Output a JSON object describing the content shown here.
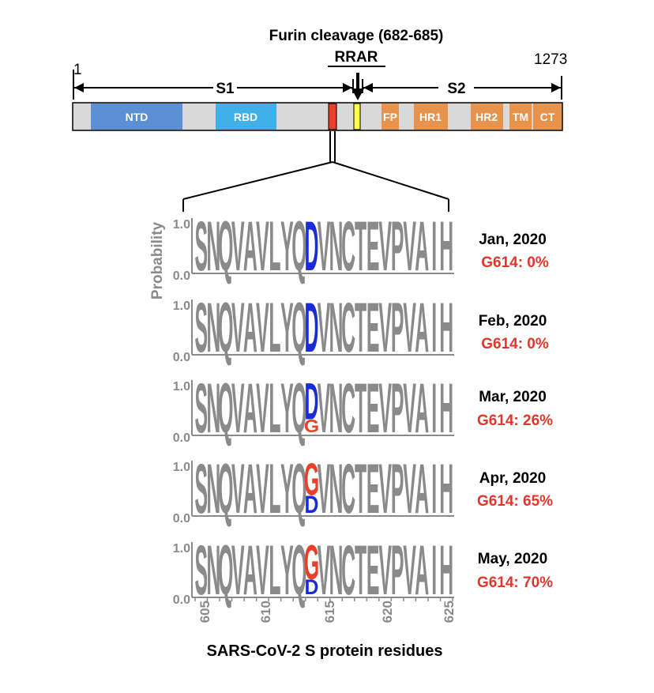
{
  "diagram": {
    "furin_title": "Furin cleavage (682-685)",
    "furin_motif": "RRAR",
    "start_residue": "1",
    "end_residue": "1273",
    "subunit_s1": "S1",
    "subunit_s2": "S2",
    "domains": [
      {
        "name": "NTD",
        "color": "#5b8fd6"
      },
      {
        "name": "RBD",
        "color": "#3fb0ea"
      },
      {
        "name": "FP",
        "color": "#e8934d"
      },
      {
        "name": "HR1",
        "color": "#e8934d"
      },
      {
        "name": "HR2",
        "color": "#e8934d"
      },
      {
        "name": "TM",
        "color": "#e8934d"
      },
      {
        "name": "CT",
        "color": "#e8934d"
      }
    ],
    "colors": {
      "bar": "#d9d9d9",
      "marker_red": "#e8402a",
      "marker_yellow": "#ffff44"
    }
  },
  "logos": {
    "ylabel": "Probability",
    "y_top": "1.0",
    "y_bottom": "0.0",
    "xlabel": "SARS-CoV-2 S protein residues",
    "x_ticks": [
      "605",
      "610",
      "615",
      "620",
      "625"
    ],
    "residues_before": "SNQVAVLYQ",
    "residues_after": "VNCTEVPVAIH",
    "colors": {
      "gray": "#8a8a8a",
      "D": "#1a2bd8",
      "G": "#e8402a",
      "label_red": "#e0362c"
    },
    "months": [
      {
        "date": "Jan, 2020",
        "g614_label": "G614: 0%",
        "g614": 0.0
      },
      {
        "date": "Feb, 2020",
        "g614_label": "G614: 0%",
        "g614": 0.0
      },
      {
        "date": "Mar, 2020",
        "g614_label": "G614: 26%",
        "g614": 0.26
      },
      {
        "date": "Apr, 2020",
        "g614_label": "G614: 65%",
        "g614": 0.65
      },
      {
        "date": "May, 2020",
        "g614_label": "G614: 70%",
        "g614": 0.7
      }
    ]
  }
}
